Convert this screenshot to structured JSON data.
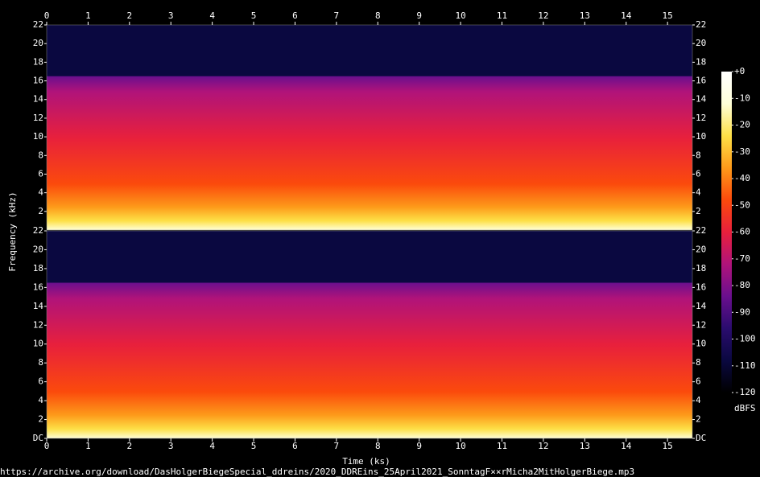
{
  "chart_data": {
    "type": "spectrogram",
    "xlabel": "Time (ks)",
    "ylabel": "Frequency (kHz)",
    "xlim": [
      0,
      15.6
    ],
    "xticks": [
      0,
      1,
      2,
      3,
      4,
      5,
      6,
      7,
      8,
      9,
      10,
      11,
      12,
      13,
      14,
      15
    ],
    "channels": [
      {
        "ylim": [
          0,
          22
        ],
        "yticks": [
          2,
          4,
          6,
          8,
          10,
          12,
          14,
          16,
          18,
          20,
          22
        ]
      },
      {
        "ylim": [
          0,
          22
        ],
        "yticks": [
          {
            "value": 0,
            "label": "DC"
          },
          2,
          4,
          6,
          8,
          10,
          12,
          14,
          16,
          18,
          20,
          22
        ]
      }
    ],
    "colorbar": {
      "label": "dBFS",
      "clim": [
        -120,
        0
      ],
      "cticks": [
        {
          "value": 0,
          "label": "+0"
        },
        -10,
        -20,
        -30,
        -40,
        -50,
        -60,
        -70,
        -80,
        -90,
        -100,
        -110,
        -120
      ],
      "colormap": [
        "#000000",
        "#0a0840",
        "#2a0c6e",
        "#6a0f8e",
        "#b0137a",
        "#e8203c",
        "#fb4a0c",
        "#fd9a1a",
        "#fde047",
        "#ffffd8",
        "#ffffff"
      ]
    },
    "source": "https://archive.org/download/DasHolgerBiegeSpecial_ddreins/2020_DDREins_25April2021_SonntagF××rMicha2MitHolgerBiege.mp3"
  }
}
